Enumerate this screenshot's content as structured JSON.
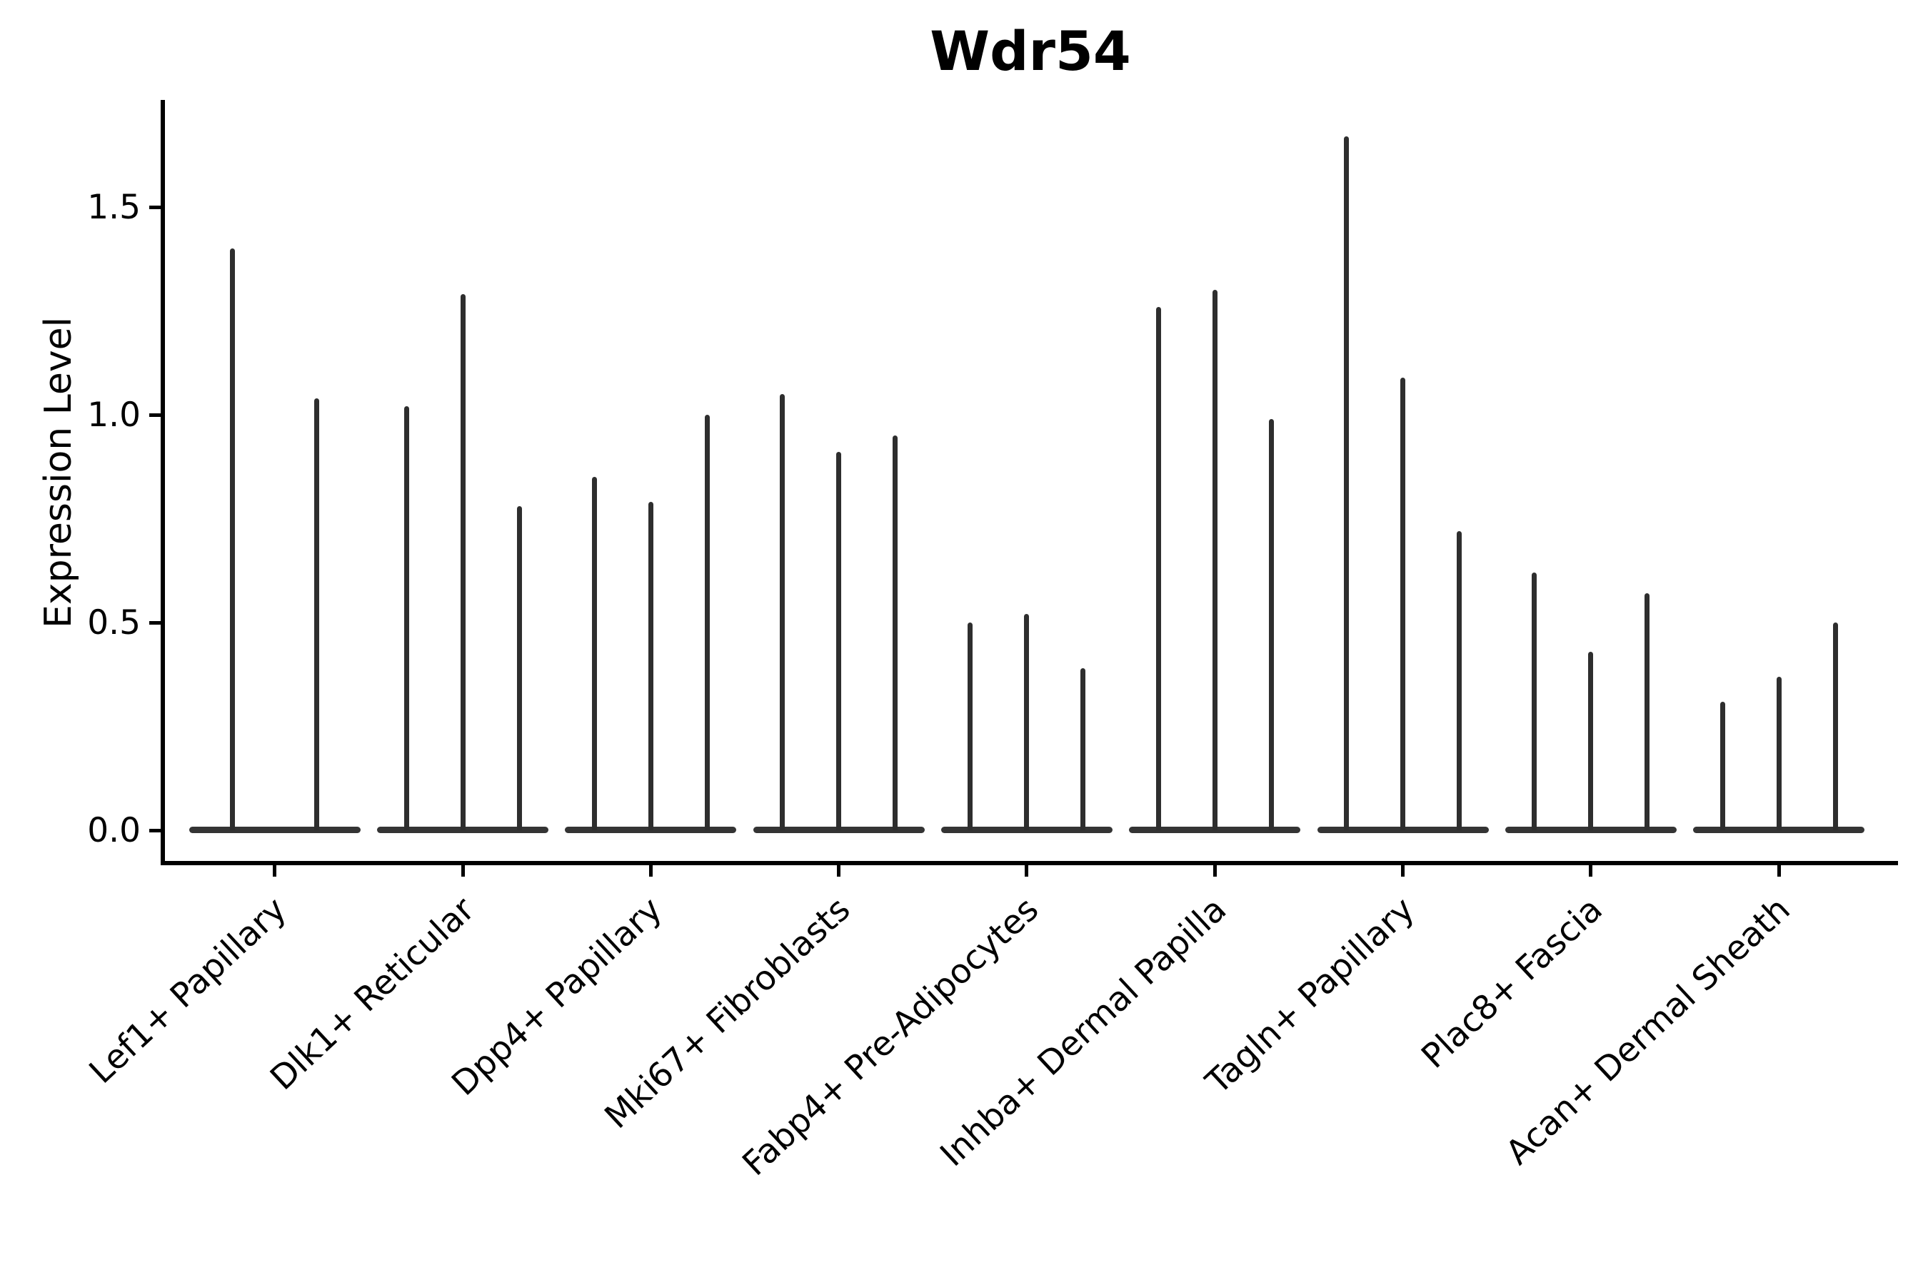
{
  "chart_data": {
    "type": "violin",
    "title": "Wdr54",
    "ylabel": "Expression Level",
    "xlabel": "",
    "yticks": [
      "0.0",
      "0.5",
      "1.0",
      "1.5"
    ],
    "ytick_values": [
      0.0,
      0.5,
      1.0,
      1.5
    ],
    "ylim": [
      0,
      1.76
    ],
    "grid": false,
    "legend": "none",
    "note": "Each category shows narrow violins (spikes) rising from a flat base at expression 0; violin_max_values are the top (maximum) expression level reached by each spike, left to right.",
    "groups": [
      {
        "label": "Lef1+ Papillary",
        "violin_max_values": [
          1.4,
          1.04
        ]
      },
      {
        "label": "Dlk1+ Reticular",
        "violin_max_values": [
          1.02,
          1.29,
          0.78
        ]
      },
      {
        "label": "Dpp4+ Papillary",
        "violin_max_values": [
          0.85,
          0.79,
          1.0
        ]
      },
      {
        "label": "Mki67+ Fibroblasts",
        "violin_max_values": [
          1.05,
          0.91,
          0.95
        ]
      },
      {
        "label": "Fabp4+ Pre-Adipocytes",
        "violin_max_values": [
          0.5,
          0.52,
          0.39
        ]
      },
      {
        "label": "Inhba+ Dermal Papilla",
        "violin_max_values": [
          1.26,
          1.3,
          0.99
        ]
      },
      {
        "label": "Tagln+ Papillary",
        "violin_max_values": [
          1.67,
          1.09,
          0.72
        ]
      },
      {
        "label": "Plac8+ Fascia",
        "violin_max_values": [
          0.62,
          0.43,
          0.57
        ]
      },
      {
        "label": "Acan+ Dermal Sheath",
        "violin_max_values": [
          0.31,
          0.37,
          0.5
        ]
      }
    ],
    "colors": {
      "ink": "#2e2e2e",
      "axis": "#000000",
      "background": "#ffffff"
    }
  }
}
